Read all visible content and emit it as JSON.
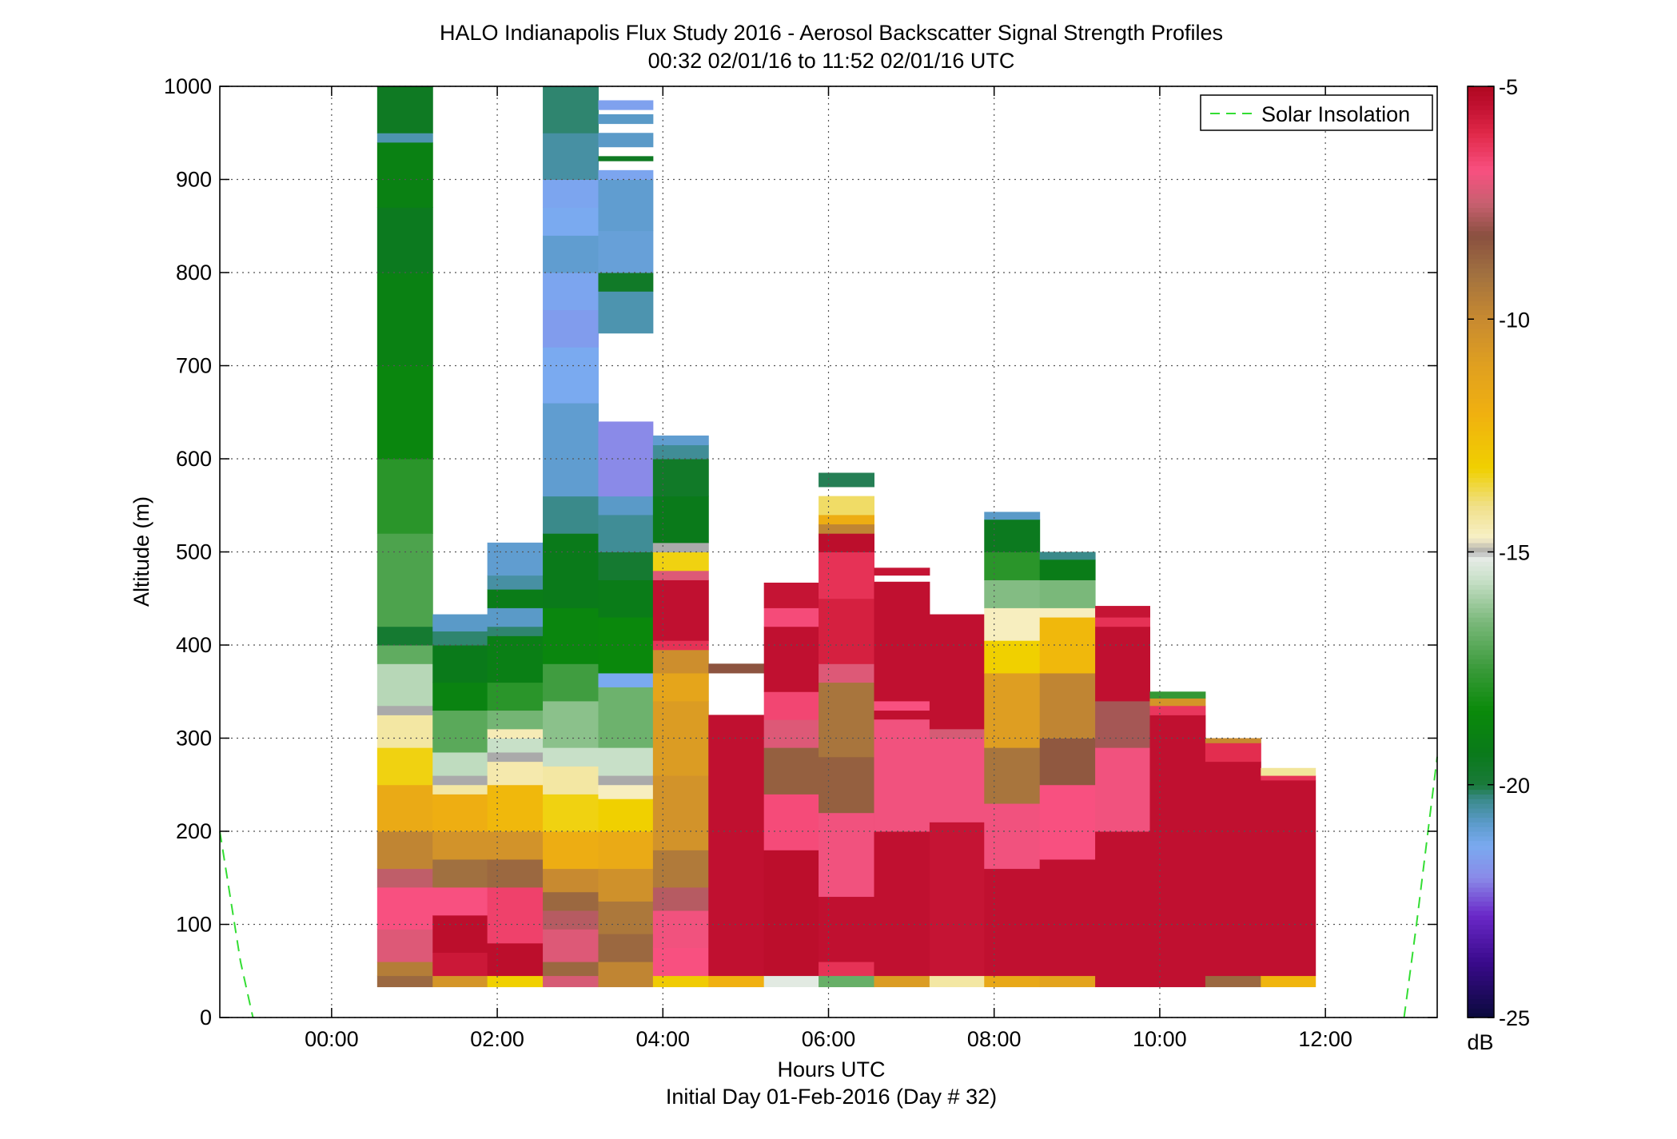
{
  "chart_data": {
    "type": "heatmap",
    "title": "HALO Indianapolis Flux Study 2016 - Aerosol Backscatter Signal Strength Profiles",
    "subtitle": "00:32 02/01/16 to 11:52 02/01/16  UTC",
    "xlabel": "Hours UTC",
    "xlabel2": "Initial Day 01-Feb-2016 (Day # 32)",
    "ylabel": "Altitude (m)",
    "xlim": [
      -1.35,
      13.35
    ],
    "ylim": [
      0,
      1000
    ],
    "x_ticks": [
      0,
      2,
      4,
      6,
      8,
      10,
      12
    ],
    "x_tick_labels": [
      "00:00",
      "02:00",
      "04:00",
      "06:00",
      "08:00",
      "10:00",
      "12:00"
    ],
    "y_ticks": [
      0,
      100,
      200,
      300,
      400,
      500,
      600,
      700,
      800,
      900,
      1000
    ],
    "y_tick_labels": [
      "0",
      "100",
      "200",
      "300",
      "400",
      "500",
      "600",
      "700",
      "800",
      "900",
      "1000"
    ],
    "grid": true,
    "legend": {
      "position": "top-right",
      "entries": [
        "Solar Insolation"
      ]
    },
    "colorbar": {
      "label": "dB",
      "range": [
        -25,
        -5
      ],
      "ticks": [
        -5,
        -10,
        -15,
        -20,
        -25
      ],
      "tick_labels": [
        "-5",
        "-10",
        "-15",
        "-20",
        "-25"
      ],
      "colormap": [
        [
          -25,
          "#0a0a3c"
        ],
        [
          -23.8,
          "#3a0a8c"
        ],
        [
          -22.8,
          "#6a28c8"
        ],
        [
          -22,
          "#8a8ae8"
        ],
        [
          -21.3,
          "#7aaaf0"
        ],
        [
          -20.8,
          "#5a9ac8"
        ],
        [
          -20.3,
          "#3a8a8a"
        ],
        [
          -20,
          "#1a7a3a"
        ],
        [
          -19.3,
          "#0a7a1a"
        ],
        [
          -18.4,
          "#0a8a0a"
        ],
        [
          -17.5,
          "#3a9a3a"
        ],
        [
          -16.5,
          "#7ab87a"
        ],
        [
          -15.6,
          "#c8e0c8"
        ],
        [
          -15.1,
          "#e8ece8"
        ],
        [
          -15,
          "#aaaaaa"
        ],
        [
          -14.7,
          "#f8f0c8"
        ],
        [
          -14,
          "#f0e088"
        ],
        [
          -13.2,
          "#f0d000"
        ],
        [
          -12,
          "#f0b010"
        ],
        [
          -11,
          "#e0a020"
        ],
        [
          -10,
          "#c88a30"
        ],
        [
          -9,
          "#a07040"
        ],
        [
          -8.2,
          "#8a5040"
        ],
        [
          -7.5,
          "#c86070"
        ],
        [
          -6.8,
          "#f85080"
        ],
        [
          -6,
          "#e02848"
        ],
        [
          -5.4,
          "#c01030"
        ],
        [
          -5,
          "#b00820"
        ]
      ]
    },
    "solar_insolation": {
      "name": "Solar Insolation",
      "color": "#33dd33",
      "style": "dashed",
      "x": [
        -1.35,
        -1.1,
        -0.95,
        12.95,
        13.1,
        13.35
      ],
      "y": [
        200,
        60,
        0,
        0,
        100,
        280
      ]
    },
    "profiles": [
      {
        "t0": 0.55,
        "t1": 1.22,
        "segments": [
          [
            33,
            45,
            -8.8
          ],
          [
            45,
            60,
            -9.5
          ],
          [
            60,
            95,
            -7.2
          ],
          [
            95,
            140,
            -6.8
          ],
          [
            140,
            160,
            -7.6
          ],
          [
            160,
            200,
            -9.8
          ],
          [
            200,
            250,
            -11.6
          ],
          [
            250,
            290,
            -13.3
          ],
          [
            290,
            325,
            -14.3
          ],
          [
            325,
            335,
            -15
          ],
          [
            335,
            380,
            -15.8
          ],
          [
            380,
            400,
            -16.9
          ],
          [
            400,
            420,
            -19.8
          ],
          [
            420,
            520,
            -17.2
          ],
          [
            520,
            600,
            -17.8
          ],
          [
            600,
            700,
            -18.6
          ],
          [
            700,
            800,
            -18.9
          ],
          [
            800,
            870,
            -19.4
          ],
          [
            870,
            940,
            -18.9
          ],
          [
            940,
            950,
            -20.6
          ],
          [
            950,
            1000,
            -19.5
          ]
        ]
      },
      {
        "t0": 1.22,
        "t1": 1.88,
        "segments": [
          [
            33,
            45,
            -10.5
          ],
          [
            45,
            70,
            -5.6
          ],
          [
            70,
            110,
            -5.3
          ],
          [
            110,
            140,
            -6.8
          ],
          [
            140,
            170,
            -9
          ],
          [
            170,
            200,
            -10.4
          ],
          [
            200,
            240,
            -11.9
          ],
          [
            240,
            250,
            -14.3
          ],
          [
            250,
            260,
            -15
          ],
          [
            260,
            285,
            -15.7
          ],
          [
            285,
            330,
            -17
          ],
          [
            330,
            360,
            -18.8
          ],
          [
            360,
            400,
            -19.3
          ],
          [
            400,
            415,
            -20.2
          ],
          [
            415,
            433,
            -20.8
          ]
        ]
      },
      {
        "t0": 1.88,
        "t1": 2.55,
        "segments": [
          [
            33,
            45,
            -13.2
          ],
          [
            45,
            80,
            -5.3
          ],
          [
            80,
            140,
            -6.5
          ],
          [
            140,
            170,
            -8.8
          ],
          [
            170,
            200,
            -10.4
          ],
          [
            200,
            250,
            -12.3
          ],
          [
            250,
            275,
            -14.4
          ],
          [
            275,
            285,
            -15
          ],
          [
            285,
            300,
            -15.6
          ],
          [
            300,
            310,
            -14.5
          ],
          [
            310,
            330,
            -16.6
          ],
          [
            330,
            360,
            -17.8
          ],
          [
            360,
            410,
            -19
          ],
          [
            410,
            420,
            -20.2
          ],
          [
            420,
            440,
            -20.8
          ],
          [
            440,
            460,
            -19.2
          ],
          [
            460,
            475,
            -20.5
          ],
          [
            475,
            510,
            -20.9
          ]
        ]
      },
      {
        "t0": 2.55,
        "t1": 3.22,
        "segments": [
          [
            33,
            45,
            -7.3
          ],
          [
            45,
            60,
            -8.8
          ],
          [
            60,
            95,
            -7.2
          ],
          [
            95,
            115,
            -7.7
          ],
          [
            115,
            135,
            -8.8
          ],
          [
            135,
            160,
            -10
          ],
          [
            160,
            200,
            -11.8
          ],
          [
            200,
            240,
            -13.3
          ],
          [
            240,
            270,
            -14.3
          ],
          [
            270,
            290,
            -15.6
          ],
          [
            290,
            340,
            -16.3
          ],
          [
            340,
            380,
            -17.4
          ],
          [
            380,
            440,
            -18.6
          ],
          [
            440,
            520,
            -19.3
          ],
          [
            520,
            560,
            -20.3
          ],
          [
            560,
            600,
            -20.9
          ],
          [
            600,
            660,
            -20.9
          ],
          [
            660,
            720,
            -21.3
          ],
          [
            720,
            760,
            -21.6
          ],
          [
            760,
            800,
            -21.4
          ],
          [
            800,
            840,
            -20.9
          ],
          [
            840,
            870,
            -21.3
          ],
          [
            870,
            900,
            -21.4
          ],
          [
            900,
            950,
            -20.5
          ],
          [
            950,
            1000,
            -20.2
          ]
        ]
      },
      {
        "t0": 3.22,
        "t1": 3.88,
        "segments": [
          [
            33,
            60,
            -9.8
          ],
          [
            60,
            90,
            -8.8
          ],
          [
            90,
            125,
            -9.3
          ],
          [
            125,
            160,
            -10.3
          ],
          [
            160,
            200,
            -11.6
          ],
          [
            200,
            235,
            -13.2
          ],
          [
            235,
            250,
            -14.6
          ],
          [
            250,
            260,
            -15
          ],
          [
            260,
            290,
            -15.6
          ],
          [
            290,
            355,
            -16.7
          ],
          [
            355,
            370,
            -21.3
          ],
          [
            370,
            430,
            -18.5
          ],
          [
            430,
            470,
            -19.2
          ],
          [
            470,
            500,
            -19.8
          ],
          [
            500,
            540,
            -20.4
          ],
          [
            540,
            560,
            -20.8
          ],
          [
            560,
            640,
            -22
          ],
          [
            735,
            780,
            -20.6
          ],
          [
            780,
            800,
            -19.6
          ],
          [
            800,
            845,
            -21
          ],
          [
            845,
            900,
            -20.9
          ],
          [
            900,
            910,
            -21.4
          ],
          [
            920,
            925,
            -19.5
          ],
          [
            935,
            950,
            -20.8
          ],
          [
            960,
            970,
            -20.8
          ],
          [
            975,
            985,
            -21.5
          ]
        ]
      },
      {
        "t0": 3.88,
        "t1": 4.55,
        "segments": [
          [
            33,
            45,
            -13
          ],
          [
            45,
            75,
            -6.8
          ],
          [
            75,
            115,
            -6.9
          ],
          [
            115,
            140,
            -7.7
          ],
          [
            140,
            180,
            -9.4
          ],
          [
            180,
            260,
            -10.4
          ],
          [
            260,
            340,
            -10.8
          ],
          [
            340,
            370,
            -11.3
          ],
          [
            370,
            395,
            -10.2
          ],
          [
            395,
            405,
            -6.2
          ],
          [
            405,
            470,
            -5.4
          ],
          [
            470,
            480,
            -7.2
          ],
          [
            480,
            500,
            -13.3
          ],
          [
            500,
            510,
            -15
          ],
          [
            510,
            560,
            -19.3
          ],
          [
            560,
            600,
            -19.6
          ],
          [
            600,
            615,
            -20.4
          ],
          [
            615,
            625,
            -20.9
          ]
        ]
      },
      {
        "t0": 4.55,
        "t1": 5.22,
        "segments": [
          [
            33,
            45,
            -12
          ],
          [
            45,
            325,
            -5.4
          ],
          [
            370,
            380,
            -8.3
          ]
        ]
      },
      {
        "t0": 5.22,
        "t1": 5.88,
        "segments": [
          [
            33,
            45,
            -15.2
          ],
          [
            45,
            180,
            -5.3
          ],
          [
            180,
            240,
            -6.7
          ],
          [
            240,
            290,
            -8.6
          ],
          [
            290,
            320,
            -7.2
          ],
          [
            320,
            350,
            -6.6
          ],
          [
            350,
            420,
            -5.4
          ],
          [
            420,
            440,
            -6.7
          ],
          [
            440,
            467,
            -5.5
          ]
        ]
      },
      {
        "t0": 5.88,
        "t1": 6.55,
        "segments": [
          [
            33,
            45,
            -16.8
          ],
          [
            45,
            60,
            -6.2
          ],
          [
            60,
            130,
            -5.4
          ],
          [
            130,
            220,
            -6.9
          ],
          [
            220,
            280,
            -8.6
          ],
          [
            280,
            360,
            -9.2
          ],
          [
            360,
            380,
            -7.2
          ],
          [
            380,
            450,
            -5.8
          ],
          [
            450,
            500,
            -6.2
          ],
          [
            500,
            520,
            -5.3
          ],
          [
            520,
            530,
            -9.8
          ],
          [
            530,
            540,
            -11.8
          ],
          [
            540,
            560,
            -13.8
          ],
          [
            570,
            585,
            -20.1
          ]
        ]
      },
      {
        "t0": 6.55,
        "t1": 7.22,
        "segments": [
          [
            33,
            45,
            -10.8
          ],
          [
            45,
            340,
            -5.4
          ],
          [
            340,
            330,
            -6.8
          ],
          [
            200,
            320,
            -6.9
          ],
          [
            340,
            468,
            -5.4
          ],
          [
            475,
            483,
            -5.5
          ]
        ]
      },
      {
        "t0": 7.22,
        "t1": 7.88,
        "segments": [
          [
            33,
            45,
            -14.3
          ],
          [
            45,
            210,
            -5.5
          ],
          [
            210,
            300,
            -6.9
          ],
          [
            300,
            310,
            -7.3
          ],
          [
            310,
            433,
            -5.4
          ]
        ]
      },
      {
        "t0": 7.88,
        "t1": 8.55,
        "segments": [
          [
            33,
            45,
            -11.5
          ],
          [
            45,
            160,
            -5.4
          ],
          [
            160,
            230,
            -6.9
          ],
          [
            230,
            290,
            -9.2
          ],
          [
            290,
            370,
            -10.9
          ],
          [
            370,
            405,
            -13.2
          ],
          [
            405,
            440,
            -14.6
          ],
          [
            440,
            470,
            -16.4
          ],
          [
            470,
            500,
            -17.8
          ],
          [
            500,
            535,
            -19.4
          ],
          [
            535,
            543,
            -20.8
          ]
        ]
      },
      {
        "t0": 8.55,
        "t1": 9.22,
        "segments": [
          [
            33,
            45,
            -11.2
          ],
          [
            45,
            170,
            -5.4
          ],
          [
            170,
            250,
            -6.8
          ],
          [
            250,
            300,
            -8.4
          ],
          [
            300,
            370,
            -9.8
          ],
          [
            370,
            430,
            -12.3
          ],
          [
            430,
            440,
            -14.6
          ],
          [
            440,
            470,
            -16.5
          ],
          [
            470,
            492,
            -19.2
          ],
          [
            492,
            500,
            -20.3
          ]
        ]
      },
      {
        "t0": 9.22,
        "t1": 9.88,
        "segments": [
          [
            33,
            200,
            -5.4
          ],
          [
            200,
            290,
            -6.9
          ],
          [
            290,
            340,
            -7.9
          ],
          [
            340,
            420,
            -5.4
          ],
          [
            420,
            430,
            -6.2
          ],
          [
            430,
            442,
            -5.5
          ]
        ]
      },
      {
        "t0": 9.88,
        "t1": 10.55,
        "segments": [
          [
            33,
            325,
            -5.4
          ],
          [
            325,
            335,
            -6.3
          ],
          [
            335,
            343,
            -10.5
          ],
          [
            343,
            350,
            -17.6
          ]
        ]
      },
      {
        "t0": 10.55,
        "t1": 11.22,
        "segments": [
          [
            33,
            45,
            -8.8
          ],
          [
            45,
            275,
            -5.4
          ],
          [
            275,
            295,
            -6.1
          ],
          [
            295,
            300,
            -10
          ]
        ]
      },
      {
        "t0": 11.22,
        "t1": 11.88,
        "segments": [
          [
            33,
            45,
            -12.2
          ],
          [
            45,
            255,
            -5.4
          ],
          [
            255,
            260,
            -6.2
          ],
          [
            260,
            268,
            -14.2
          ]
        ]
      }
    ]
  }
}
